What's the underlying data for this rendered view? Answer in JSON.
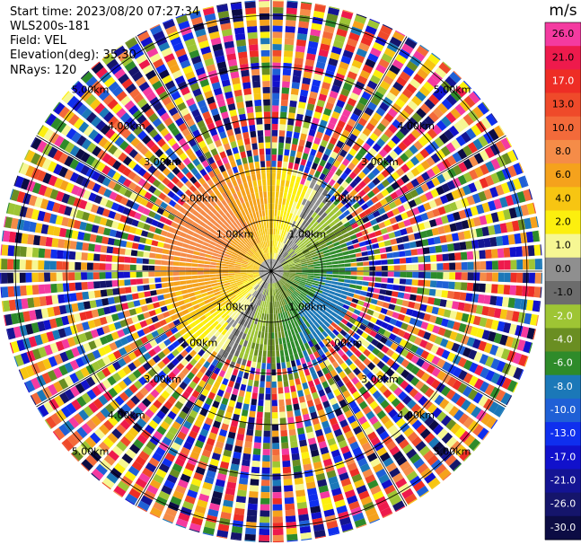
{
  "header": {
    "start_time": "Start time: 2023/08/20 07:27:34",
    "instrument": "WLS200s-181",
    "field": "Field: VEL",
    "elevation": "Elevation(deg): 35.30",
    "nrays": "NRays: 120"
  },
  "chart_data": {
    "type": "heatmap",
    "projection": "polar-ppi",
    "colorbar": {
      "unit": "m/s",
      "ticks": [
        "26.0",
        "21.0",
        "17.0",
        "13.0",
        "10.0",
        "8.0",
        "6.0",
        "4.0",
        "2.0",
        "1.0",
        "0.0",
        "-1.0",
        "-2.0",
        "-4.0",
        "-6.0",
        "-8.0",
        "-10.0",
        "-13.0",
        "-17.0",
        "-21.0",
        "-26.0",
        "-30.0"
      ],
      "colors": [
        "#f43aa0",
        "#ee1a4c",
        "#ee2d25",
        "#ef4a2a",
        "#f36a3a",
        "#f58c48",
        "#f5a21c",
        "#f7c512",
        "#fcef0e",
        "#f6f793",
        "#8f8f8f",
        "#6c6c6c",
        "#9ec534",
        "#6a8e22",
        "#2e8b2a",
        "#1b78b8",
        "#1f60d6",
        "#0f2fee",
        "#1111cc",
        "#141494",
        "#15156b",
        "#0c0c44"
      ]
    },
    "range_rings_km": [
      1.0,
      2.0,
      3.0,
      4.0,
      5.0
    ],
    "range_ring_labels": [
      "1.00km",
      "2.00km",
      "3.00km",
      "4.00km",
      "5.00km"
    ],
    "max_range_km": 5.3,
    "n_rays": 120,
    "clear_air_range_km": 2.3,
    "wind_pattern": {
      "positive_sector_center_deg": 300,
      "negative_sector_center_deg": 120,
      "max_speed_ms": 8.0
    }
  }
}
